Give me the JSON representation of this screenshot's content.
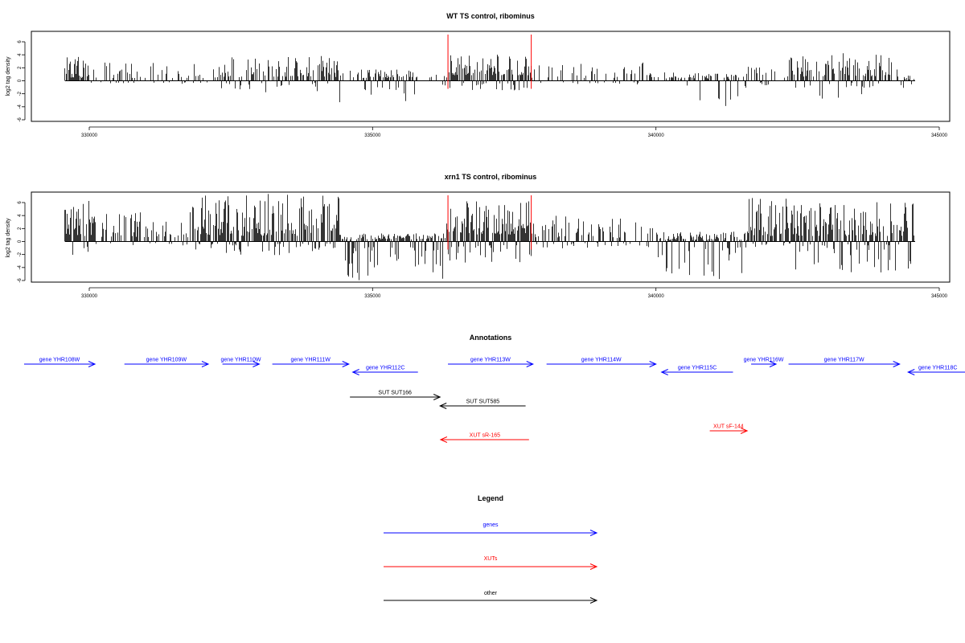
{
  "chart_data": [
    {
      "type": "bar",
      "title": "WT TS control, ribominus",
      "xlabel": "",
      "ylabel": "log2 tag density",
      "xlim": [
        329550,
        344550
      ],
      "ylim": [
        -6,
        6
      ],
      "x_ticks": [
        330000,
        335000,
        340000,
        345000
      ],
      "x_tick_labels": [
        "330000",
        "335000",
        "340000",
        "345000"
      ],
      "y_ticks": [
        -6,
        -4,
        -2,
        0,
        2,
        4,
        6
      ],
      "y_tick_labels": [
        "-6",
        "-4",
        "-2",
        "0",
        "2",
        "4",
        "6"
      ],
      "markers": {
        "x": [
          336330,
          337800
        ],
        "color": "#ff0000"
      },
      "bar_color": "#000000",
      "profile": [
        {
          "from": 329550,
          "to": 329990,
          "density": 0.75,
          "pos": [
            0.4,
            3.4
          ],
          "neg": [
            0.2,
            0.4
          ]
        },
        {
          "from": 329990,
          "to": 332250,
          "density": 0.3,
          "pos": [
            0.4,
            2.6
          ],
          "neg": [
            0.2,
            0.5
          ]
        },
        {
          "from": 332250,
          "to": 334400,
          "density": 0.6,
          "pos": [
            0.5,
            3.6
          ],
          "neg": [
            0.3,
            1.8
          ]
        },
        {
          "from": 334400,
          "to": 335800,
          "density": 0.65,
          "pos": [
            0.4,
            1.6
          ],
          "neg": [
            0.8,
            3.6
          ]
        },
        {
          "from": 335800,
          "to": 336330,
          "density": 0.2,
          "pos": [
            0.4,
            1.6
          ],
          "neg": [
            0.4,
            1.8
          ]
        },
        {
          "from": 336330,
          "to": 337800,
          "density": 0.85,
          "pos": [
            0.8,
            3.8
          ],
          "neg": [
            0.3,
            1.4
          ]
        },
        {
          "from": 337800,
          "to": 339800,
          "density": 0.28,
          "pos": [
            0.4,
            2.6
          ],
          "neg": [
            0.2,
            0.6
          ]
        },
        {
          "from": 339800,
          "to": 341600,
          "density": 0.5,
          "pos": [
            0.3,
            1.2
          ],
          "neg": [
            0.6,
            3.8
          ]
        },
        {
          "from": 341600,
          "to": 342300,
          "density": 0.25,
          "pos": [
            0.4,
            2.0
          ],
          "neg": [
            0.2,
            0.8
          ]
        },
        {
          "from": 342300,
          "to": 344300,
          "density": 0.6,
          "pos": [
            0.6,
            4.0
          ],
          "neg": [
            0.3,
            2.6
          ]
        },
        {
          "from": 344300,
          "to": 344550,
          "density": 0.5,
          "pos": [
            0.2,
            0.8
          ],
          "neg": [
            0.5,
            2.6
          ]
        }
      ]
    },
    {
      "type": "bar",
      "title": "xrn1 TS control, ribominus",
      "xlabel": "",
      "ylabel": "log2 tag density",
      "xlim": [
        329550,
        344550
      ],
      "ylim": [
        -6,
        6
      ],
      "x_ticks": [
        330000,
        335000,
        340000,
        345000
      ],
      "x_tick_labels": [
        "330000",
        "335000",
        "340000",
        "345000"
      ],
      "y_ticks": [
        -6,
        -4,
        -2,
        0,
        2,
        4,
        6
      ],
      "y_tick_labels": [
        "-6",
        "-4",
        "-2",
        "0",
        "2",
        "4",
        "6"
      ],
      "markers": {
        "x": [
          336330,
          337800
        ],
        "color": "#ff0000"
      },
      "bar_color": "#000000",
      "profile": [
        {
          "from": 329550,
          "to": 330100,
          "density": 0.8,
          "pos": [
            0.8,
            5.8
          ],
          "neg": [
            0.2,
            2.2
          ]
        },
        {
          "from": 330100,
          "to": 331800,
          "density": 0.45,
          "pos": [
            0.6,
            4.2
          ],
          "neg": [
            0.2,
            0.6
          ]
        },
        {
          "from": 331800,
          "to": 334400,
          "density": 0.85,
          "pos": [
            0.8,
            6.8
          ],
          "neg": [
            0.3,
            2.2
          ]
        },
        {
          "from": 334400,
          "to": 336300,
          "density": 0.9,
          "pos": [
            0.3,
            1.2
          ],
          "neg": [
            0.8,
            5.6
          ]
        },
        {
          "from": 336300,
          "to": 337800,
          "density": 0.95,
          "pos": [
            1.0,
            5.8
          ],
          "neg": [
            0.5,
            3.0
          ]
        },
        {
          "from": 337800,
          "to": 340000,
          "density": 0.5,
          "pos": [
            0.5,
            3.8
          ],
          "neg": [
            0.2,
            1.0
          ]
        },
        {
          "from": 340000,
          "to": 341600,
          "density": 0.85,
          "pos": [
            0.2,
            1.4
          ],
          "neg": [
            0.8,
            5.4
          ]
        },
        {
          "from": 341600,
          "to": 342400,
          "density": 0.85,
          "pos": [
            0.8,
            6.4
          ],
          "neg": [
            0.2,
            0.8
          ]
        },
        {
          "from": 342400,
          "to": 344550,
          "density": 0.8,
          "pos": [
            0.8,
            5.6
          ],
          "neg": [
            0.4,
            4.6
          ]
        }
      ]
    }
  ],
  "annotations": {
    "title": "Annotations",
    "features": [
      {
        "label": "gene YHR108W",
        "start": 328850,
        "end": 330100,
        "strand": "+",
        "kind": "genes",
        "row": 0
      },
      {
        "label": "gene YHR109W",
        "start": 330620,
        "end": 332100,
        "strand": "+",
        "kind": "genes",
        "row": 0
      },
      {
        "label": "gene YHR110W",
        "start": 332350,
        "end": 333000,
        "strand": "+",
        "kind": "genes",
        "row": 0
      },
      {
        "label": "gene YHR111W",
        "start": 333230,
        "end": 334580,
        "strand": "+",
        "kind": "genes",
        "row": 0
      },
      {
        "label": "gene YHR112C",
        "start": 334650,
        "end": 335800,
        "strand": "-",
        "kind": "genes",
        "row": 1
      },
      {
        "label": "gene YHR113W",
        "start": 336330,
        "end": 337830,
        "strand": "+",
        "kind": "genes",
        "row": 0
      },
      {
        "label": "gene YHR114W",
        "start": 338070,
        "end": 340000,
        "strand": "+",
        "kind": "genes",
        "row": 0
      },
      {
        "label": "gene YHR115C",
        "start": 340100,
        "end": 341360,
        "strand": "-",
        "kind": "genes",
        "row": 1
      },
      {
        "label": "gene YHR116W",
        "start": 341680,
        "end": 342120,
        "strand": "+",
        "kind": "genes",
        "row": 0
      },
      {
        "label": "gene YHR117W",
        "start": 342340,
        "end": 344300,
        "strand": "+",
        "kind": "genes",
        "row": 0
      },
      {
        "label": "gene YHR118C",
        "start": 344450,
        "end": 345500,
        "strand": "-",
        "kind": "genes",
        "row": 1
      },
      {
        "label": "SUT SUT166",
        "start": 334600,
        "end": 336190,
        "strand": "+",
        "kind": "other",
        "row": 2
      },
      {
        "label": "SUT SUT585",
        "start": 336190,
        "end": 337700,
        "strand": "-",
        "kind": "other",
        "row": 3
      },
      {
        "label": "XUT sF-144",
        "start": 340950,
        "end": 341610,
        "strand": "+",
        "kind": "XUTs",
        "row": 4
      },
      {
        "label": "XUT sR-165",
        "start": 336200,
        "end": 337760,
        "strand": "-",
        "kind": "XUTs",
        "row": 5
      }
    ]
  },
  "legend": {
    "title": "Legend",
    "items": [
      {
        "label": "genes",
        "color": "#0000ff"
      },
      {
        "label": "XUTs",
        "color": "#ff0000"
      },
      {
        "label": "other",
        "color": "#000000"
      }
    ]
  }
}
